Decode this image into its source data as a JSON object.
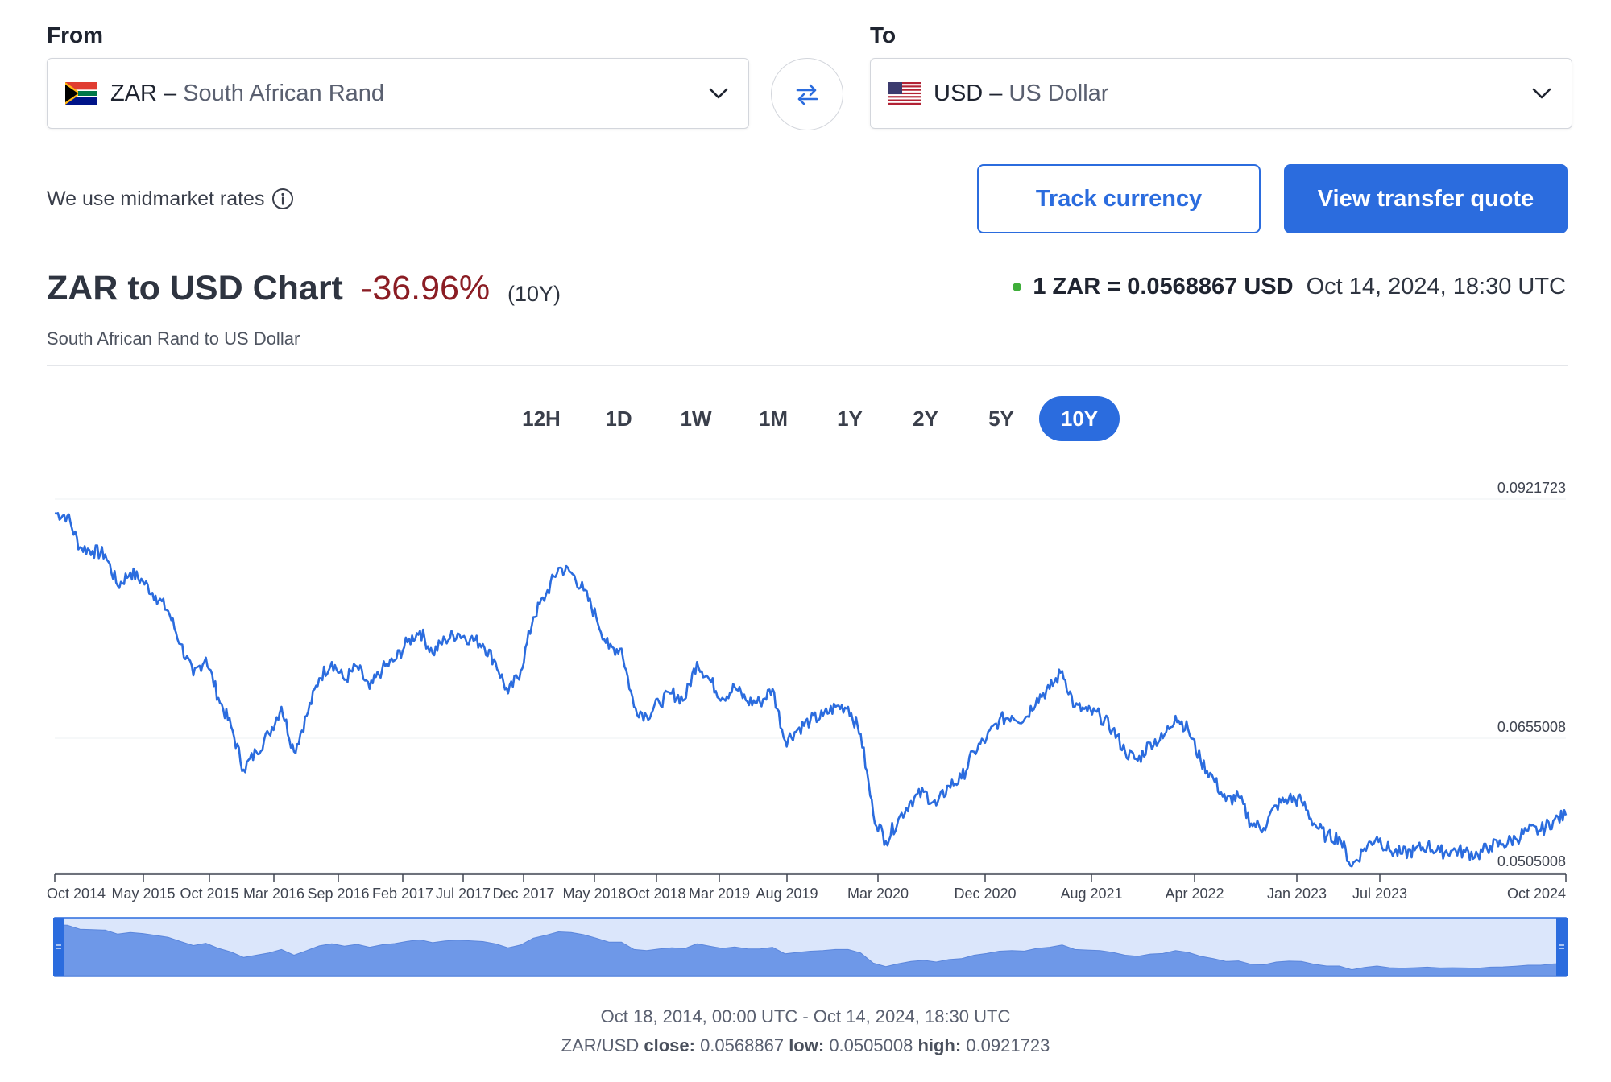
{
  "from": {
    "label": "From",
    "code": "ZAR",
    "dash": "–",
    "name": "South African Rand",
    "flag_icon": "south-africa-flag-icon"
  },
  "to": {
    "label": "To",
    "code": "USD",
    "dash": "–",
    "name": "US Dollar",
    "flag_icon": "us-flag-icon"
  },
  "midmarket_text": "We use midmarket rates",
  "buttons": {
    "track": "Track currency",
    "quote": "View transfer quote"
  },
  "chart_header": {
    "title": "ZAR to USD Chart",
    "change": "-36.96%",
    "period": "(10Y)",
    "subtitle": "South African Rand to US Dollar",
    "rate": "1 ZAR = 0.0568867 USD",
    "timestamp": "Oct 14, 2024, 18:30 UTC"
  },
  "periods": [
    "12H",
    "1D",
    "1W",
    "1M",
    "1Y",
    "2Y",
    "5Y",
    "10Y"
  ],
  "active_period": "10Y",
  "footer": {
    "range": "Oct 18, 2014, 00:00 UTC - Oct 14, 2024, 18:30 UTC",
    "pair": "ZAR/USD",
    "close_label": "close:",
    "close": "0.0568867",
    "low_label": "low:",
    "low": "0.0505008",
    "high_label": "high:",
    "high": "0.0921723"
  },
  "colors": {
    "accent": "#2b6cde",
    "negative": "#8b1d24",
    "live": "#3fae3a",
    "navigator_fill": "#6e98e8",
    "navigator_bg": "#dbe6fb"
  },
  "chart_data": {
    "type": "line",
    "title": "",
    "xlabel": "",
    "ylabel": "",
    "ylim": [
      0.0505008,
      0.0921723
    ],
    "y_ticks": [
      "0.0921723",
      "0.0655008",
      "0.0505008"
    ],
    "x_tick_labels": [
      "Oct 2014",
      "May 2015",
      "Oct 2015",
      "Mar 2016",
      "Sep 2016",
      "Feb 2017",
      "Jul 2017",
      "Dec 2017",
      "May 2018",
      "Oct 2018",
      "Mar 2019",
      "Aug 2019",
      "Mar 2020",
      "Dec 2020",
      "Aug 2021",
      "Apr 2022",
      "Jan 2023",
      "Jul 2023",
      "Oct 2024"
    ],
    "series": [
      {
        "x": [
          "2014-10",
          "2014-11",
          "2014-12",
          "2015-01",
          "2015-02",
          "2015-03",
          "2015-04",
          "2015-05",
          "2015-06",
          "2015-07",
          "2015-08",
          "2015-09",
          "2015-10",
          "2015-11",
          "2015-12",
          "2016-01",
          "2016-02",
          "2016-03",
          "2016-04",
          "2016-05",
          "2016-06",
          "2016-07",
          "2016-08",
          "2016-09",
          "2016-10",
          "2016-11",
          "2016-12",
          "2017-01",
          "2017-02",
          "2017-03",
          "2017-04",
          "2017-05",
          "2017-06",
          "2017-07",
          "2017-08",
          "2017-09",
          "2017-10",
          "2017-11",
          "2017-12",
          "2018-01",
          "2018-02",
          "2018-03",
          "2018-04",
          "2018-05",
          "2018-06",
          "2018-07",
          "2018-08",
          "2018-09",
          "2018-10",
          "2018-11",
          "2018-12",
          "2019-01",
          "2019-02",
          "2019-03",
          "2019-04",
          "2019-05",
          "2019-06",
          "2019-07",
          "2019-08",
          "2019-09",
          "2019-10",
          "2019-11",
          "2019-12",
          "2020-01",
          "2020-02",
          "2020-03",
          "2020-04",
          "2020-05",
          "2020-06",
          "2020-07",
          "2020-08",
          "2020-09",
          "2020-10",
          "2020-11",
          "2020-12",
          "2021-01",
          "2021-02",
          "2021-03",
          "2021-04",
          "2021-05",
          "2021-06",
          "2021-07",
          "2021-08",
          "2021-09",
          "2021-10",
          "2021-11",
          "2021-12",
          "2022-01",
          "2022-02",
          "2022-03",
          "2022-04",
          "2022-05",
          "2022-06",
          "2022-07",
          "2022-08",
          "2022-09",
          "2022-10",
          "2022-11",
          "2022-12",
          "2023-01",
          "2023-02",
          "2023-03",
          "2023-04",
          "2023-05",
          "2023-06",
          "2023-07",
          "2023-08",
          "2023-09",
          "2023-10",
          "2023-11",
          "2023-12",
          "2024-01",
          "2024-02",
          "2024-03",
          "2024-04",
          "2024-05",
          "2024-06",
          "2024-07",
          "2024-08",
          "2024-09",
          "2024-10"
        ],
        "values": [
          0.0906,
          0.0903,
          0.0868,
          0.0864,
          0.086,
          0.0825,
          0.084,
          0.083,
          0.0814,
          0.0797,
          0.076,
          0.0725,
          0.0745,
          0.07,
          0.0668,
          0.062,
          0.064,
          0.066,
          0.069,
          0.064,
          0.068,
          0.0722,
          0.074,
          0.072,
          0.0735,
          0.071,
          0.0732,
          0.0742,
          0.0762,
          0.0775,
          0.075,
          0.0765,
          0.0772,
          0.0766,
          0.076,
          0.074,
          0.0705,
          0.073,
          0.079,
          0.0815,
          0.0845,
          0.084,
          0.082,
          0.079,
          0.0755,
          0.0755,
          0.069,
          0.068,
          0.0695,
          0.0705,
          0.0698,
          0.074,
          0.072,
          0.07,
          0.0712,
          0.0696,
          0.0695,
          0.071,
          0.0652,
          0.0665,
          0.0675,
          0.068,
          0.069,
          0.069,
          0.066,
          0.057,
          0.054,
          0.0565,
          0.0585,
          0.0595,
          0.058,
          0.0602,
          0.061,
          0.064,
          0.0655,
          0.0675,
          0.068,
          0.0676,
          0.07,
          0.071,
          0.073,
          0.069,
          0.0685,
          0.068,
          0.0665,
          0.064,
          0.063,
          0.065,
          0.0655,
          0.068,
          0.0665,
          0.063,
          0.061,
          0.0585,
          0.059,
          0.056,
          0.0555,
          0.058,
          0.0588,
          0.0585,
          0.056,
          0.0545,
          0.0545,
          0.0512,
          0.0532,
          0.0545,
          0.053,
          0.0526,
          0.053,
          0.0535,
          0.0528,
          0.053,
          0.0528,
          0.0525,
          0.0535,
          0.0537,
          0.0543,
          0.0552,
          0.0552,
          0.0563,
          0.0569
        ]
      }
    ]
  }
}
